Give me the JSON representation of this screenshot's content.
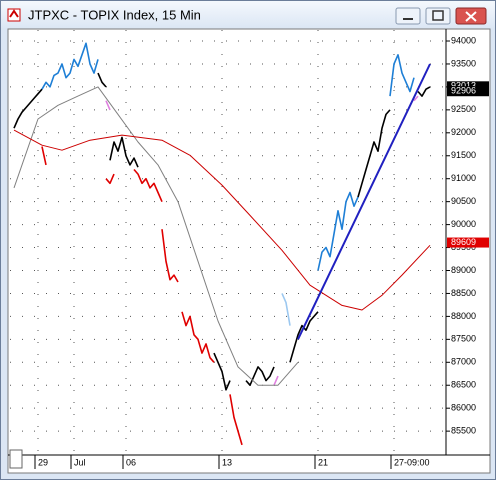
{
  "chart_data": {
    "type": "line",
    "title": "JTPXC - TOPIX Index, 15 Min",
    "xlim": [
      0,
      109
    ],
    "ylim": [
      84980,
      94240
    ],
    "xticks": [
      {
        "value": 7,
        "label": "29"
      },
      {
        "value": 16,
        "label": "Jul"
      },
      {
        "value": 29,
        "label": "06"
      },
      {
        "value": 53,
        "label": "13"
      },
      {
        "value": 77,
        "label": "21"
      },
      {
        "value": 96,
        "label": "27-09:00"
      }
    ],
    "yticks": [
      85500,
      86000,
      86500,
      87000,
      87500,
      88000,
      88500,
      89000,
      89500,
      90000,
      90500,
      91000,
      91500,
      92000,
      92500,
      93000,
      93500,
      94000
    ],
    "grid": true,
    "price_labels": [
      {
        "value": 93013,
        "color": "#000000"
      },
      {
        "value": 92906,
        "color": "#000000"
      },
      {
        "value": 89609,
        "color": "#e00000"
      }
    ],
    "series": [
      {
        "color": "#000000",
        "x": [
          1,
          2,
          3,
          4,
          5,
          6,
          7,
          8
        ],
        "values": [
          92100,
          92300,
          92450,
          92550,
          92650,
          92750,
          92850,
          92950
        ]
      },
      {
        "color": "#1e7fd6",
        "x": [
          8,
          9,
          10,
          11,
          12,
          13,
          14,
          15,
          16,
          17,
          18,
          19,
          20,
          21,
          22
        ],
        "values": [
          92950,
          93100,
          93000,
          93250,
          93300,
          93500,
          93200,
          93300,
          93600,
          93450,
          93700,
          93950,
          93500,
          93300,
          93600
        ]
      },
      {
        "color": "#000000",
        "x": [
          22,
          23,
          24
        ],
        "values": [
          93300,
          93100,
          93000
        ]
      },
      {
        "color": "#e080e0",
        "x": [
          24,
          25
        ],
        "values": [
          92700,
          92500
        ]
      },
      {
        "color": "#e00000",
        "x": [
          8,
          9
        ],
        "values": [
          91700,
          91300
        ]
      },
      {
        "color": "#e00000",
        "x": [
          24,
          25,
          26
        ],
        "values": [
          91000,
          90900,
          91100
        ]
      },
      {
        "color": "#000000",
        "x": [
          25,
          26,
          27,
          28,
          29,
          30,
          31,
          32
        ],
        "values": [
          91400,
          91800,
          91600,
          91900,
          91500,
          91300,
          91450,
          91250
        ]
      },
      {
        "color": "#e00000",
        "x": [
          31,
          32,
          33,
          34,
          35,
          36,
          37,
          38
        ],
        "values": [
          91200,
          91100,
          90900,
          91000,
          90800,
          90900,
          90700,
          90500
        ]
      },
      {
        "color": "#e00000",
        "x": [
          38,
          39,
          40,
          41,
          42
        ],
        "values": [
          89900,
          89200,
          88800,
          88900,
          88750
        ]
      },
      {
        "color": "#e00000",
        "x": [
          43,
          44,
          45,
          46,
          47,
          48,
          49,
          50,
          51
        ],
        "values": [
          88100,
          87800,
          88000,
          87600,
          87500,
          87200,
          87400,
          87100,
          87000
        ]
      },
      {
        "color": "#000000",
        "x": [
          51,
          52,
          53,
          54,
          55
        ],
        "values": [
          87200,
          87000,
          86800,
          86400,
          86600
        ]
      },
      {
        "color": "#e00000",
        "x": [
          55,
          56,
          57,
          58
        ],
        "values": [
          86300,
          85800,
          85500,
          85200
        ]
      },
      {
        "color": "#000000",
        "x": [
          59,
          60,
          61,
          62,
          63,
          64,
          65,
          66
        ],
        "values": [
          86600,
          86500,
          86700,
          86900,
          86800,
          86600,
          86700,
          86900
        ]
      },
      {
        "color": "#e080e0",
        "x": [
          66,
          67
        ],
        "values": [
          86500,
          86700
        ]
      },
      {
        "color": "#9cc8f0",
        "x": [
          68,
          69,
          70
        ],
        "values": [
          88500,
          88300,
          87800
        ]
      },
      {
        "color": "#000000",
        "x": [
          70,
          71,
          72,
          73,
          74,
          75,
          76,
          77
        ],
        "values": [
          87000,
          87300,
          87600,
          87800,
          87700,
          87900,
          88000,
          88100
        ]
      },
      {
        "color": "#1e7fd6",
        "x": [
          77,
          78,
          79,
          80,
          81,
          82,
          83,
          84,
          85,
          86,
          87
        ],
        "values": [
          89000,
          89400,
          89500,
          89300,
          89800,
          90300,
          89900,
          90500,
          90700,
          90400,
          90600
        ]
      },
      {
        "color": "#000000",
        "x": [
          87,
          88,
          89,
          90,
          91,
          92,
          93,
          94,
          95
        ],
        "values": [
          90600,
          90900,
          91200,
          91500,
          91800,
          91600,
          92100,
          92400,
          92500
        ]
      },
      {
        "color": "#1e7fd6",
        "x": [
          95,
          96,
          97,
          98,
          99,
          100,
          101
        ],
        "values": [
          92800,
          93500,
          93700,
          93300,
          93100,
          92900,
          93200
        ]
      },
      {
        "color": "#e080e0",
        "x": [
          101,
          102
        ],
        "values": [
          92700,
          92800
        ]
      },
      {
        "color": "#000000",
        "x": [
          102,
          103,
          104,
          105
        ],
        "values": [
          92900,
          92800,
          92950,
          93000
        ]
      },
      {
        "color": "#808080",
        "line_width": 1,
        "x": [
          1,
          7,
          12,
          17,
          22,
          27,
          32,
          37,
          42,
          47,
          52,
          57,
          62,
          67,
          72
        ],
        "values": [
          90800,
          92300,
          92600,
          92800,
          93000,
          92400,
          91800,
          91300,
          90500,
          89200,
          87900,
          86900,
          86500,
          86500,
          87000
        ]
      },
      {
        "color": "#cc0000",
        "line_width": 1,
        "x": [
          1,
          8,
          13,
          20,
          28,
          38,
          45,
          53,
          60,
          68,
          75,
          83,
          88,
          93,
          98,
          105
        ],
        "values": [
          92060,
          91730,
          91620,
          91840,
          91950,
          91840,
          91510,
          90860,
          90200,
          89440,
          88680,
          88240,
          88140,
          88460,
          88900,
          89550
        ]
      },
      {
        "color": "#2020c0",
        "line_width": 2,
        "x": [
          72,
          105
        ],
        "values": [
          87500,
          93500
        ]
      }
    ]
  }
}
